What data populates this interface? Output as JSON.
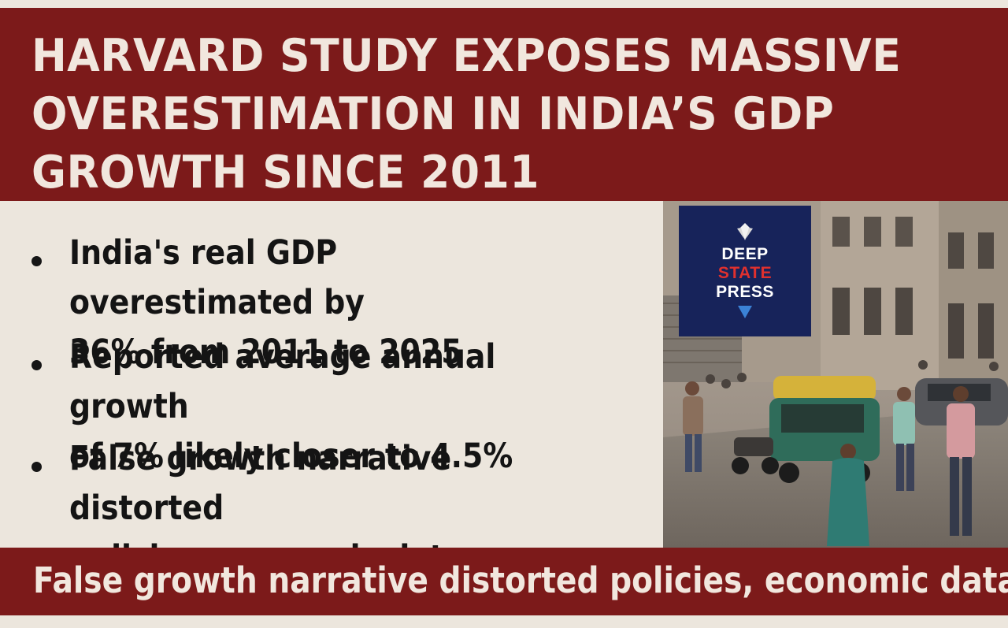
{
  "headline": "HARVARD STUDY EXPOSES MASSIVE OVERESTIMATION IN INDIA’S GDP GROWTH SINCE 2011",
  "bullets": [
    {
      "text": "India's real GDP overestimated by\n36% from 2011 to 2025"
    },
    {
      "text": "Reported average annual growth\nof 7% likely closer to 4.5%"
    },
    {
      "text": "False growth narrative distorted\npolicies, economic data"
    }
  ],
  "logo": {
    "line1": "DEEP",
    "line2": "STATE",
    "line3": "PRESS"
  },
  "bottom_caption": "False growth narrative distorted policies, economic data",
  "colors": {
    "band": "#7c1a1a",
    "background": "#ece6dd",
    "logo_bg": "#17235a",
    "logo_accent": "#e0302e",
    "logo_arrow": "#3b82d6"
  }
}
